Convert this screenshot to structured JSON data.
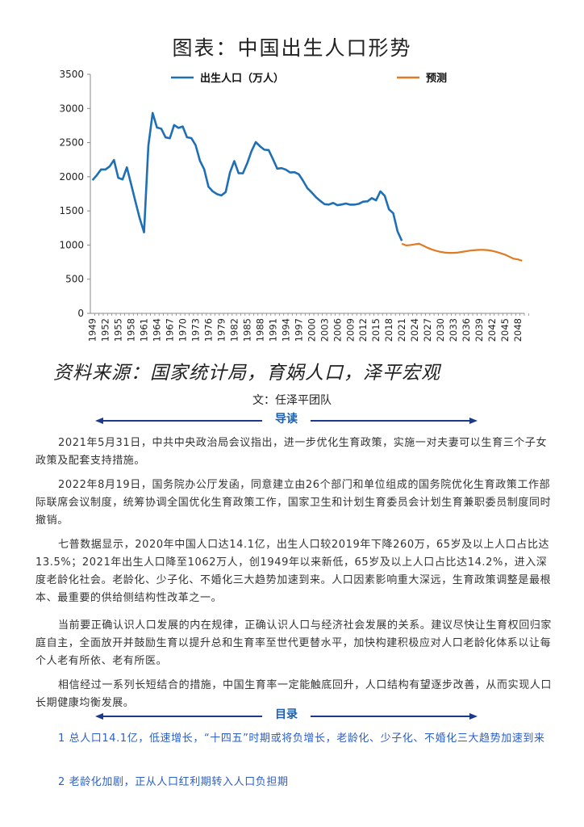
{
  "header": {
    "chart_title": "图表：中国出生人口形势",
    "source": "资料来源：国家统计局，育娲人口，泽平宏观",
    "author": "文：任泽平团队"
  },
  "chart_data": {
    "type": "line",
    "ylim": [
      0,
      3500
    ],
    "yticks": [
      0,
      500,
      1000,
      1500,
      2000,
      2500,
      3000,
      3500
    ],
    "xlim": [
      1949,
      2050
    ],
    "xticks": [
      1949,
      1952,
      1955,
      1958,
      1961,
      1964,
      1967,
      1970,
      1973,
      1976,
      1979,
      1982,
      1985,
      1988,
      1991,
      1994,
      1997,
      2000,
      2003,
      2006,
      2009,
      2012,
      2015,
      2018,
      2021,
      2024,
      2027,
      2030,
      2033,
      2036,
      2039,
      2042,
      2045,
      2048
    ],
    "legend_position": "top",
    "grid": false,
    "series": [
      {
        "name": "出生人口（万人）",
        "color": "#1f6fb5",
        "x": [
          1949,
          1950,
          1951,
          1952,
          1953,
          1954,
          1955,
          1956,
          1957,
          1958,
          1959,
          1960,
          1961,
          1962,
          1963,
          1964,
          1965,
          1966,
          1967,
          1968,
          1969,
          1970,
          1971,
          1972,
          1973,
          1974,
          1975,
          1976,
          1977,
          1978,
          1979,
          1980,
          1981,
          1982,
          1983,
          1984,
          1985,
          1986,
          1987,
          1988,
          1989,
          1990,
          1991,
          1992,
          1993,
          1994,
          1995,
          1996,
          1997,
          1998,
          1999,
          2000,
          2001,
          2002,
          2003,
          2004,
          2005,
          2006,
          2007,
          2008,
          2009,
          2010,
          2011,
          2012,
          2013,
          2014,
          2015,
          2016,
          2017,
          2018,
          2019,
          2020,
          2021
        ],
        "values": [
          1950,
          2023,
          2107,
          2105,
          2151,
          2245,
          1984,
          1961,
          2138,
          1889,
          1635,
          1389,
          1187,
          2451,
          2934,
          2721,
          2704,
          2577,
          2563,
          2757,
          2715,
          2736,
          2578,
          2566,
          2463,
          2235,
          2109,
          1853,
          1786,
          1745,
          1727,
          1776,
          2064,
          2230,
          2052,
          2050,
          2196,
          2374,
          2508,
          2445,
          2396,
          2391,
          2258,
          2119,
          2126,
          2104,
          2063,
          2067,
          2038,
          1942,
          1834,
          1771,
          1702,
          1647,
          1599,
          1593,
          1617,
          1584,
          1594,
          1608,
          1591,
          1592,
          1604,
          1635,
          1640,
          1687,
          1655,
          1786,
          1723,
          1523,
          1465,
          1200,
          1062
        ]
      },
      {
        "name": "预测",
        "color": "#e07b23",
        "x": [
          2021,
          2022,
          2023,
          2024,
          2025,
          2026,
          2027,
          2028,
          2029,
          2030,
          2031,
          2032,
          2033,
          2034,
          2035,
          2036,
          2037,
          2038,
          2039,
          2040,
          2041,
          2042,
          2043,
          2044,
          2045,
          2046,
          2047,
          2048,
          2049
        ],
        "values": [
          1020,
          995,
          1000,
          1010,
          1020,
          990,
          960,
          935,
          915,
          900,
          890,
          885,
          885,
          890,
          900,
          910,
          920,
          925,
          930,
          930,
          925,
          915,
          900,
          880,
          860,
          830,
          800,
          790,
          770
        ]
      }
    ]
  },
  "intro": {
    "heading": "导读",
    "paragraphs": [
      "2021年5月31日，中共中央政治局会议指出，进一步优化生育政策，实施一对夫妻可以生育三个子女政策及配套支持措施。",
      "2022年8月19日，国务院办公厅发函，同意建立由26个部门和单位组成的国务院优化生育政策工作部际联席会议制度，统筹协调全国优化生育政策工作，国家卫生和计划生育委员会计划生育兼职委员制度同时撤销。",
      "七普数据显示，2020年中国人口达14.1亿，出生人口较2019年下降260万，65岁及以上人口占比达13.5%；2021年出生人口降至1062万人，创1949年以来新低，65岁及以上人口占比达14.2%，进入深度老龄化社会。老龄化、少子化、不婚化三大趋势加速到来。人口因素影响重大深远，生育政策调整是最根本、最重要的供给侧结构性改革之一。",
      "当前要正确认识人口发展的内在规律，正确认识人口与经济社会发展的关系。建议尽快让生育权回归家庭自主，全面放开并鼓励生育以提升总和生育率至世代更替水平，加快构建积极应对人口老龄化体系以让每个人老有所依、老有所医。",
      "相信经过一系列长短结合的措施，中国生育率一定能触底回升，人口结构有望逐步改善，从而实现人口长期健康均衡发展。"
    ]
  },
  "toc": {
    "heading": "目录",
    "items": [
      "1 总人口14.1亿，低速增长，“十四五”时期或将负增长，老龄化、少子化、不婚化三大趋势加速到来",
      "2 老龄化加剧，正从人口红利期转入人口负担期"
    ]
  }
}
